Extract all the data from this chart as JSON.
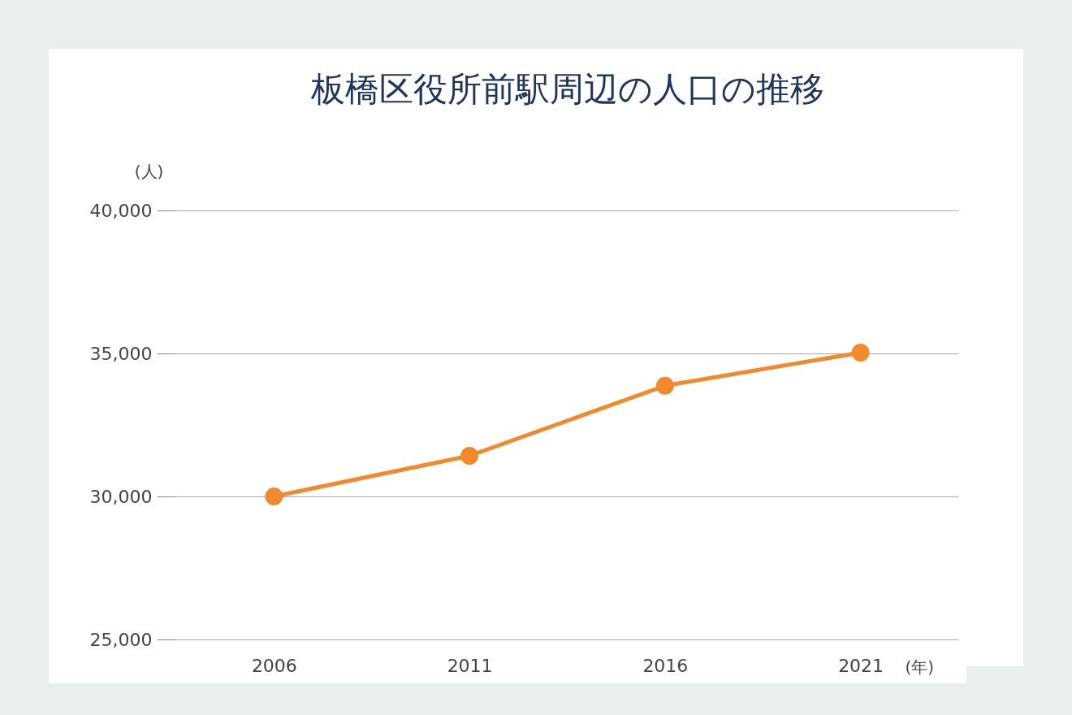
{
  "chart_data": {
    "type": "line",
    "title": "板橋区役所前駅周辺の人口の推移",
    "xlabel": "(年)",
    "ylabel": "(人)",
    "categories": [
      "2006",
      "2011",
      "2016",
      "2021"
    ],
    "series": [
      {
        "color": "#f18a2c",
        "values": [
          30000,
          31420,
          33870,
          35030
        ]
      }
    ],
    "ylim": [
      25000,
      40000
    ],
    "yticks": [
      {
        "value": 25000,
        "label": "25,000"
      },
      {
        "value": 30000,
        "label": "30,000"
      },
      {
        "value": 35000,
        "label": "35,000"
      },
      {
        "value": 40000,
        "label": "40,000"
      }
    ],
    "grid": "y",
    "marker": "circle",
    "line_style": "solid",
    "legend": false
  }
}
